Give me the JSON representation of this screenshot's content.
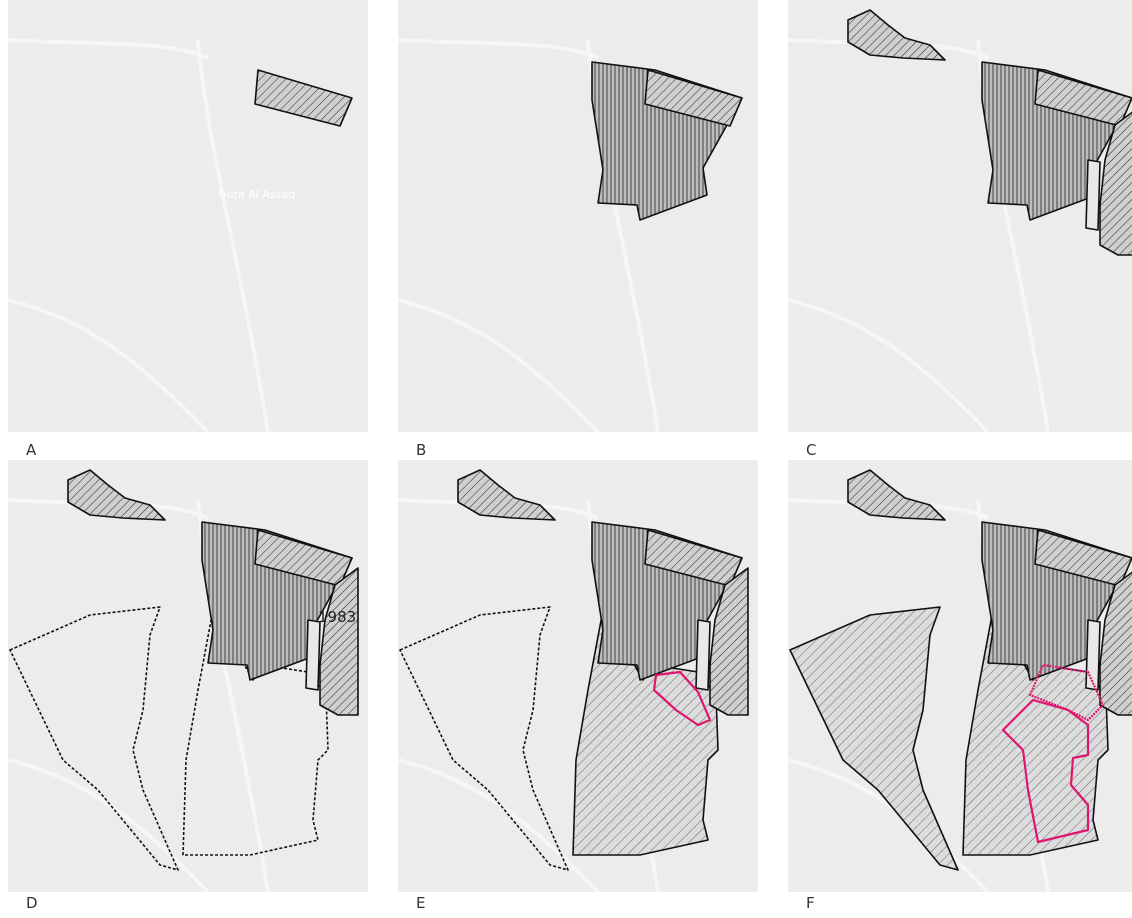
{
  "panels": [
    {
      "label": "A",
      "annotation": "Qura Al Assad"
    },
    {
      "label": "B"
    },
    {
      "label": "C"
    },
    {
      "label": "D",
      "annotation": "1983"
    },
    {
      "label": "E"
    },
    {
      "label": "F"
    }
  ]
}
